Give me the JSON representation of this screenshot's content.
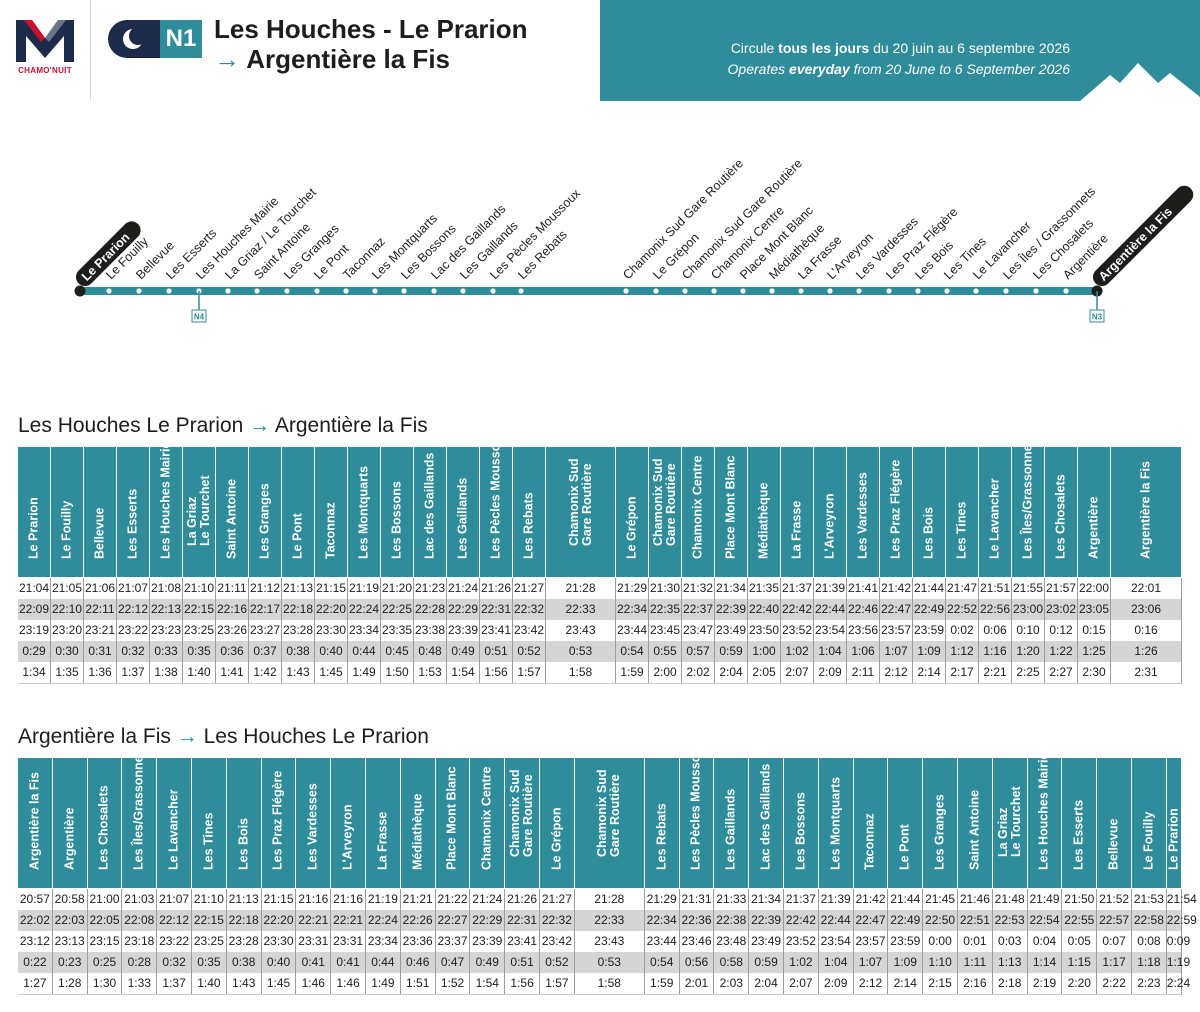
{
  "header": {
    "brand": "CHAMO'NUIT",
    "line_code": "N1",
    "title_line1": "Les Houches - Le Prarion",
    "title_arrow": "→",
    "title_line2": "Argentière la Fis",
    "banner_fr_pre": "Circule ",
    "banner_fr_bold": "tous les jours",
    "banner_fr_post": " du 20 juin au 6 septembre 2026",
    "banner_en_pre": "Operates ",
    "banner_en_bold": "everyday",
    "banner_en_post": " from 20 June to 6 September 2026",
    "colors": {
      "teal": "#2e8c9b",
      "navy": "#1d2b4a",
      "brand_red": "#c8102e"
    }
  },
  "route": {
    "start_stop": "Le Prarion",
    "end_stop": "Argentière la Fis",
    "stops": [
      "Le Fouilly",
      "Bellevue",
      "Les Esserts",
      "Les Houches Mairie",
      "La Griaz / Le Tourchet",
      "Saint Antoine",
      "Les Granges",
      "Le Pont",
      "Taconnaz",
      "Les Montquarts",
      "Les Bossons",
      "Lac des Gaillands",
      "Les Gaillands",
      "Les Pècles Moussoux",
      "Les Rebats",
      "Chamonix Sud Gare Routière",
      "Le Grépon",
      "Chamonix Sud Gare Routière",
      "Chamonix Centre",
      "Place Mont Blanc",
      "Médiathèque",
      "La Frasse",
      "L'Arveyron",
      "Les Vardesses",
      "Les Praz Flégère",
      "Les Bois",
      "Les Tines",
      "Le Lavancher",
      "Les Îles / Grassonnets",
      "Les Chosalets",
      "Argentière"
    ],
    "connection_start": "N4",
    "connection_end": "N3"
  },
  "outbound": {
    "title_from": "Les Houches Le Prarion",
    "title_arrow": "→",
    "title_to": "Argentière la Fis",
    "headers": [
      "Le Prarion",
      "Le Fouilly",
      "Bellevue",
      "Les Esserts",
      "Les Houches Mairie",
      "La Griaz\nLe Tourchet",
      "Saint Antoine",
      "Les Granges",
      "Le Pont",
      "Taconnaz",
      "Les Montquarts",
      "Les Bossons",
      "Lac des Gaillands",
      "Les Gaillands",
      "Les Pècles Moussoux",
      "Les Rebats",
      "Chamonix Sud\nGare Routière",
      "Le Grépon",
      "Chamonix Sud\nGare Routière",
      "Chamonix Centre",
      "Place Mont Blanc",
      "Médiathèque",
      "La Frasse",
      "L'Arveyron",
      "Les Vardesses",
      "Les Praz Flégère",
      "Les Bois",
      "Les Tines",
      "Le Lavancher",
      "Les Îles/Grassonnets",
      "Les Chosalets",
      "Argentière",
      "Argentière la Fis"
    ],
    "rows": [
      [
        "21:04",
        "21:05",
        "21:06",
        "21:07",
        "21:08",
        "21:10",
        "21:11",
        "21:12",
        "21:13",
        "21:15",
        "21:19",
        "21:20",
        "21:23",
        "21:24",
        "21:26",
        "21:27",
        "21:28",
        "21:29",
        "21:30",
        "21:32",
        "21:34",
        "21:35",
        "21:37",
        "21:39",
        "21:41",
        "21:42",
        "21:44",
        "21:47",
        "21:51",
        "21:55",
        "21:57",
        "22:00",
        "22:01"
      ],
      [
        "22:09",
        "22:10",
        "22:11",
        "22:12",
        "22:13",
        "22:15",
        "22:16",
        "22:17",
        "22:18",
        "22:20",
        "22:24",
        "22:25",
        "22:28",
        "22:29",
        "22:31",
        "22:32",
        "22:33",
        "22:34",
        "22:35",
        "22:37",
        "22:39",
        "22:40",
        "22:42",
        "22:44",
        "22:46",
        "22:47",
        "22:49",
        "22:52",
        "22:56",
        "23:00",
        "23:02",
        "23:05",
        "23:06"
      ],
      [
        "23:19",
        "23:20",
        "23:21",
        "23:22",
        "23:23",
        "23:25",
        "23:26",
        "23:27",
        "23:28",
        "23:30",
        "23:34",
        "23:35",
        "23:38",
        "23:39",
        "23:41",
        "23:42",
        "23:43",
        "23:44",
        "23:45",
        "23:47",
        "23:49",
        "23:50",
        "23:52",
        "23:54",
        "23:56",
        "23:57",
        "23:59",
        "0:02",
        "0:06",
        "0:10",
        "0:12",
        "0:15",
        "0:16"
      ],
      [
        "0:29",
        "0:30",
        "0:31",
        "0:32",
        "0:33",
        "0:35",
        "0:36",
        "0:37",
        "0:38",
        "0:40",
        "0:44",
        "0:45",
        "0:48",
        "0:49",
        "0:51",
        "0:52",
        "0:53",
        "0:54",
        "0:55",
        "0:57",
        "0:59",
        "1:00",
        "1:02",
        "1:04",
        "1:06",
        "1:07",
        "1:09",
        "1:12",
        "1:16",
        "1:20",
        "1:22",
        "1:25",
        "1:26"
      ],
      [
        "1:34",
        "1:35",
        "1:36",
        "1:37",
        "1:38",
        "1:40",
        "1:41",
        "1:42",
        "1:43",
        "1:45",
        "1:49",
        "1:50",
        "1:53",
        "1:54",
        "1:56",
        "1:57",
        "1:58",
        "1:59",
        "2:00",
        "2:02",
        "2:04",
        "2:05",
        "2:07",
        "2:09",
        "2:11",
        "2:12",
        "2:14",
        "2:17",
        "2:21",
        "2:25",
        "2:27",
        "2:30",
        "2:31"
      ]
    ]
  },
  "inbound": {
    "title_from": "Argentière la Fis",
    "title_arrow": "→",
    "title_to": "Les Houches Le Prarion",
    "headers": [
      "Argentière la Fis",
      "Argentière",
      "Les Chosalets",
      "Les Îles/Grassonnets",
      "Le Lavancher",
      "Les Tines",
      "Les Bois",
      "Les Praz Flégère",
      "Les Vardesses",
      "L'Arveyron",
      "La Frasse",
      "Médiathèque",
      "Place Mont Blanc",
      "Chamonix Centre",
      "Chamonix Sud\nGare Routière",
      "Le Grépon",
      "Chamonix Sud\nGare Routière",
      "Les Rebats",
      "Les Pècles Moussoux",
      "Les Gaillands",
      "Lac des Gaillands",
      "Les Bossons",
      "Les Montquarts",
      "Taconnaz",
      "Le Pont",
      "Les Granges",
      "Saint Antoine",
      "La Griaz\nLe Tourchet",
      "Les Houches Mairie",
      "Les Esserts",
      "Bellevue",
      "Le Fouilly",
      "Le Prarion"
    ],
    "rows": [
      [
        "20:57",
        "20:58",
        "21:00",
        "21:03",
        "21:07",
        "21:10",
        "21:13",
        "21:15",
        "21:16",
        "21:16",
        "21:19",
        "21:21",
        "21:22",
        "21:24",
        "21:26",
        "21:27",
        "21:28",
        "21:29",
        "21:31",
        "21:33",
        "21:34",
        "21:37",
        "21:39",
        "21:42",
        "21:44",
        "21:45",
        "21:46",
        "21:48",
        "21:49",
        "21:50",
        "21:52",
        "21:53",
        "21:54"
      ],
      [
        "22:02",
        "22:03",
        "22:05",
        "22:08",
        "22:12",
        "22:15",
        "22:18",
        "22:20",
        "22:21",
        "22:21",
        "22:24",
        "22:26",
        "22:27",
        "22:29",
        "22:31",
        "22:32",
        "22:33",
        "22:34",
        "22:36",
        "22:38",
        "22:39",
        "22:42",
        "22:44",
        "22:47",
        "22:49",
        "22:50",
        "22:51",
        "22:53",
        "22:54",
        "22:55",
        "22:57",
        "22:58",
        "22:59"
      ],
      [
        "23:12",
        "23:13",
        "23:15",
        "23:18",
        "23:22",
        "23:25",
        "23:28",
        "23:30",
        "23:31",
        "23:31",
        "23:34",
        "23:36",
        "23:37",
        "23:39",
        "23:41",
        "23:42",
        "23:43",
        "23:44",
        "23:46",
        "23:48",
        "23:49",
        "23:52",
        "23:54",
        "23:57",
        "23:59",
        "0:00",
        "0:01",
        "0:03",
        "0:04",
        "0:05",
        "0:07",
        "0:08",
        "0:09"
      ],
      [
        "0:22",
        "0:23",
        "0:25",
        "0:28",
        "0:32",
        "0:35",
        "0:38",
        "0:40",
        "0:41",
        "0:41",
        "0:44",
        "0:46",
        "0:47",
        "0:49",
        "0:51",
        "0:52",
        "0:53",
        "0:54",
        "0:56",
        "0:58",
        "0:59",
        "1:02",
        "1:04",
        "1:07",
        "1:09",
        "1:10",
        "1:11",
        "1:13",
        "1:14",
        "1:15",
        "1:17",
        "1:18",
        "1:19"
      ],
      [
        "1:27",
        "1:28",
        "1:30",
        "1:33",
        "1:37",
        "1:40",
        "1:43",
        "1:45",
        "1:46",
        "1:46",
        "1:49",
        "1:51",
        "1:52",
        "1:54",
        "1:56",
        "1:57",
        "1:58",
        "1:59",
        "2:01",
        "2:03",
        "2:04",
        "2:07",
        "2:09",
        "2:12",
        "2:14",
        "2:15",
        "2:16",
        "2:18",
        "2:19",
        "2:20",
        "2:22",
        "2:23",
        "2:24"
      ]
    ]
  }
}
